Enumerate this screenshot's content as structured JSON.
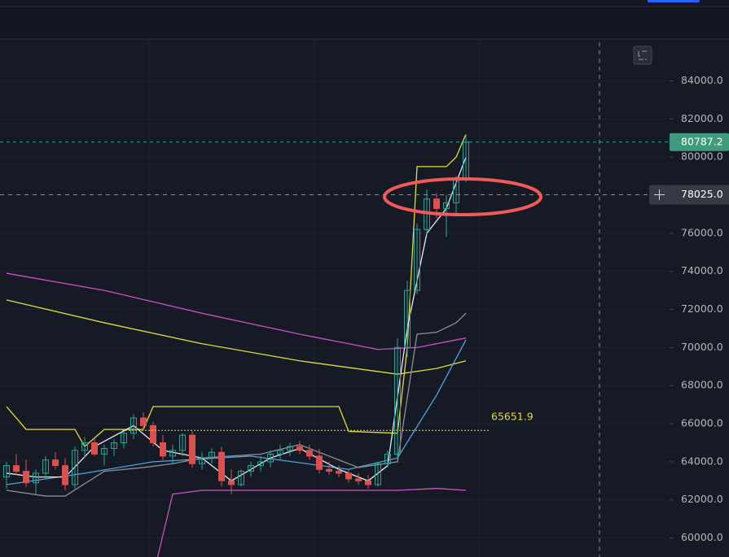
{
  "chart_data": {
    "type": "candlestick",
    "ylim": [
      59000,
      86200
    ],
    "yticks": [
      {
        "value": 60000,
        "label": "60000.0"
      },
      {
        "value": 62000,
        "label": "62000.0"
      },
      {
        "value": 64000,
        "label": "64000.0"
      },
      {
        "value": 66000,
        "label": "66000.0"
      },
      {
        "value": 68000,
        "label": "68000.0"
      },
      {
        "value": 70000,
        "label": "70000.0"
      },
      {
        "value": 72000,
        "label": "72000.0"
      },
      {
        "value": 74000,
        "label": "74000.0"
      },
      {
        "value": 76000,
        "label": "76000.0"
      },
      {
        "value": 78000,
        "label": "78000.0"
      },
      {
        "value": 80000,
        "label": "80000.0"
      },
      {
        "value": 82000,
        "label": "82000.0"
      },
      {
        "value": 84000,
        "label": "84000.0"
      }
    ],
    "grid": true,
    "up_color": "#26a69a",
    "down_color": "#d9504e",
    "candles": [
      [
        63200,
        64000,
        62600,
        63800
      ],
      [
        63800,
        64400,
        63300,
        63500
      ],
      [
        63500,
        64100,
        62700,
        62900
      ],
      [
        62900,
        63600,
        62300,
        63400
      ],
      [
        63400,
        64300,
        63100,
        64100
      ],
      [
        64100,
        64500,
        63600,
        63800
      ],
      [
        63800,
        64200,
        62500,
        62800
      ],
      [
        62800,
        64800,
        62600,
        64600
      ],
      [
        64600,
        65300,
        64200,
        65000
      ],
      [
        65000,
        65200,
        64300,
        64400
      ],
      [
        64400,
        64900,
        63800,
        64700
      ],
      [
        64700,
        65200,
        64300,
        65000
      ],
      [
        65000,
        65600,
        64700,
        65500
      ],
      [
        65500,
        66500,
        65200,
        66300
      ],
      [
        66300,
        66600,
        65700,
        65900
      ],
      [
        65900,
        66100,
        64800,
        65000
      ],
      [
        65000,
        65400,
        64100,
        64300
      ],
      [
        64300,
        64900,
        63900,
        64600
      ],
      [
        64600,
        65500,
        64300,
        65400
      ],
      [
        65400,
        65600,
        63700,
        63900
      ],
      [
        63900,
        64500,
        63600,
        64200
      ],
      [
        64200,
        64700,
        63900,
        64500
      ],
      [
        64500,
        64800,
        62700,
        63000
      ],
      [
        63000,
        63600,
        62300,
        62800
      ],
      [
        62800,
        63600,
        62700,
        63500
      ],
      [
        63500,
        64000,
        63200,
        63800
      ],
      [
        63800,
        64300,
        63500,
        64000
      ],
      [
        64000,
        64600,
        63700,
        64400
      ],
      [
        64400,
        64900,
        64100,
        64600
      ],
      [
        64600,
        65000,
        64300,
        64800
      ],
      [
        64800,
        65100,
        64400,
        64600
      ],
      [
        64600,
        64900,
        64100,
        64300
      ],
      [
        64300,
        64700,
        63400,
        63600
      ],
      [
        63600,
        64000,
        63300,
        63500
      ],
      [
        63500,
        63800,
        63200,
        63400
      ],
      [
        63400,
        63600,
        62900,
        63100
      ],
      [
        63100,
        63400,
        62800,
        63000
      ],
      [
        63000,
        63300,
        62600,
        62800
      ],
      [
        62800,
        64000,
        62700,
        63900
      ],
      [
        63900,
        64600,
        63700,
        64400
      ],
      [
        64400,
        70500,
        64200,
        70000
      ],
      [
        70000,
        73500,
        69500,
        73000
      ],
      [
        73000,
        76500,
        72800,
        76200
      ],
      [
        76200,
        78300,
        75800,
        77800
      ],
      [
        77800,
        78100,
        76800,
        77300
      ],
      [
        77300,
        78000,
        75800,
        77600
      ],
      [
        77600,
        79000,
        77000,
        78900
      ],
      [
        78900,
        81200,
        78700,
        80787.2
      ]
    ],
    "series": [
      {
        "color": "#d24fc4",
        "x": [
          0,
          10,
          20,
          30,
          38,
          42,
          47
        ],
        "values": [
          73900,
          73000,
          71800,
          70700,
          69900,
          70000,
          70500
        ]
      },
      {
        "color": "#e3dc3b",
        "x": [
          0,
          10,
          20,
          30,
          40,
          44,
          47
        ],
        "values": [
          72500,
          71300,
          70200,
          69300,
          68600,
          68900,
          69300
        ]
      },
      {
        "color": "#e3dc3b",
        "x": [
          0,
          2,
          7,
          8,
          10,
          14,
          15,
          34,
          35,
          40,
          41,
          42,
          44,
          45,
          46,
          47
        ],
        "values": [
          66900,
          65700,
          65700,
          64800,
          65700,
          65700,
          66900,
          66900,
          65600,
          65500,
          70000,
          79500,
          79500,
          79500,
          80000,
          81200
        ]
      },
      {
        "color": "#d24fc4",
        "x": [
          15,
          17,
          20,
          27,
          40,
          44,
          47
        ],
        "values": [
          58000,
          62300,
          62500,
          62500,
          62500,
          62600,
          62500
        ]
      },
      {
        "color": "#4fa3e0",
        "x": [
          0,
          8,
          15,
          25,
          35,
          40,
          44,
          47
        ],
        "values": [
          62800,
          63400,
          64000,
          64300,
          63600,
          64200,
          67500,
          70400
        ]
      },
      {
        "color": "#e8eaf0",
        "x": [
          0,
          3,
          6,
          9,
          13,
          16,
          20,
          23,
          27,
          30,
          34,
          37,
          39,
          41,
          43,
          45,
          47
        ],
        "values": [
          63400,
          63200,
          63200,
          64800,
          65900,
          64600,
          64200,
          63000,
          64200,
          64700,
          63600,
          63000,
          63800,
          71000,
          76000,
          77300,
          80000
        ]
      },
      {
        "color": "#8d8f99",
        "x": [
          0,
          4,
          6,
          10,
          14,
          17,
          20,
          26,
          30,
          36,
          40,
          42,
          44,
          46,
          47
        ],
        "values": [
          62500,
          62200,
          62200,
          63500,
          63700,
          63900,
          64200,
          64400,
          64900,
          63700,
          64000,
          70700,
          70800,
          71300,
          71800
        ]
      }
    ],
    "last_price": 80787.2,
    "crosshair_price": {
      "value": 78025,
      "label": "78025.0"
    },
    "level": 65651.9
  }
}
